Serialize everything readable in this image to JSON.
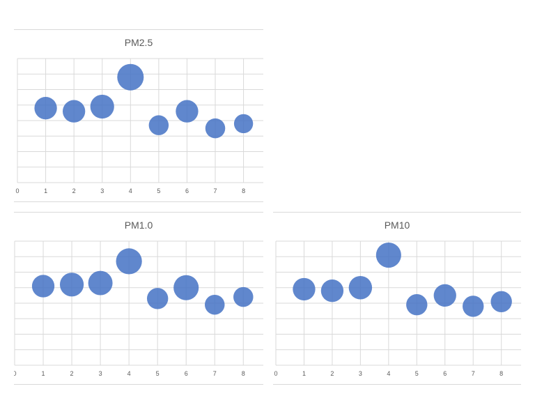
{
  "colors": {
    "bubble": "#4472C4",
    "grid": "#d9d9d9",
    "axis_text": "#595959"
  },
  "chart_data": [
    {
      "type": "scatter",
      "title": "PM2.5",
      "x_ticks": [
        "0",
        "1",
        "2",
        "3",
        "4",
        "5",
        "6",
        "7",
        "8"
      ],
      "xlim": [
        0,
        8.7
      ],
      "ylim": [
        0,
        8
      ],
      "grid": true,
      "legend": "none",
      "points": [
        {
          "x": 1,
          "y": 4.8,
          "size": 0.85
        },
        {
          "x": 2,
          "y": 4.6,
          "size": 0.85
        },
        {
          "x": 3,
          "y": 4.9,
          "size": 0.9
        },
        {
          "x": 4,
          "y": 6.8,
          "size": 1.0
        },
        {
          "x": 5,
          "y": 3.7,
          "size": 0.75
        },
        {
          "x": 6,
          "y": 4.6,
          "size": 0.85
        },
        {
          "x": 7,
          "y": 3.5,
          "size": 0.75
        },
        {
          "x": 8,
          "y": 3.8,
          "size": 0.72
        }
      ]
    },
    {
      "type": "scatter",
      "title": "PM1.0",
      "x_ticks": [
        "0",
        "1",
        "2",
        "3",
        "4",
        "5",
        "6",
        "7",
        "8"
      ],
      "xlim": [
        0,
        8.7
      ],
      "ylim": [
        0,
        8
      ],
      "grid": true,
      "legend": "none",
      "points": [
        {
          "x": 1,
          "y": 5.1,
          "size": 0.85
        },
        {
          "x": 2,
          "y": 5.2,
          "size": 0.9
        },
        {
          "x": 3,
          "y": 5.3,
          "size": 0.92
        },
        {
          "x": 4,
          "y": 6.7,
          "size": 0.98
        },
        {
          "x": 5,
          "y": 4.3,
          "size": 0.8
        },
        {
          "x": 6,
          "y": 5.0,
          "size": 0.95
        },
        {
          "x": 7,
          "y": 3.9,
          "size": 0.75
        },
        {
          "x": 8,
          "y": 4.4,
          "size": 0.75
        }
      ]
    },
    {
      "type": "scatter",
      "title": "PM10",
      "x_ticks": [
        "0",
        "1",
        "2",
        "3",
        "4",
        "5",
        "6",
        "7",
        "8"
      ],
      "xlim": [
        0,
        8.7
      ],
      "ylim": [
        0,
        8
      ],
      "grid": true,
      "legend": "none",
      "points": [
        {
          "x": 1,
          "y": 4.9,
          "size": 0.85
        },
        {
          "x": 2,
          "y": 4.8,
          "size": 0.85
        },
        {
          "x": 3,
          "y": 5.0,
          "size": 0.88
        },
        {
          "x": 4,
          "y": 7.1,
          "size": 0.95
        },
        {
          "x": 5,
          "y": 3.9,
          "size": 0.8
        },
        {
          "x": 6,
          "y": 4.5,
          "size": 0.85
        },
        {
          "x": 7,
          "y": 3.8,
          "size": 0.8
        },
        {
          "x": 8,
          "y": 4.1,
          "size": 0.8
        }
      ]
    }
  ]
}
